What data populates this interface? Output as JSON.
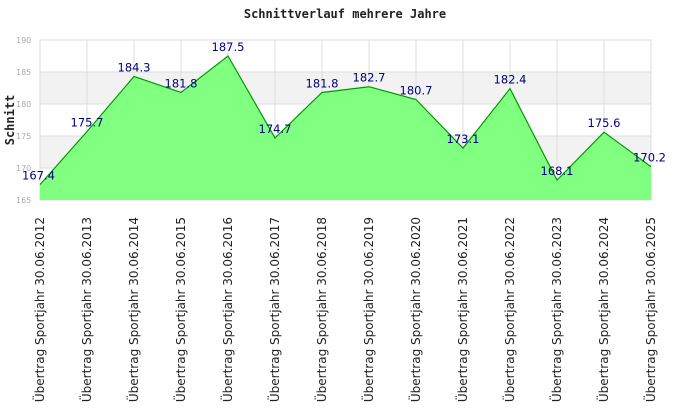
{
  "chart_data": {
    "type": "area",
    "title": "Schnittverlauf mehrere Jahre",
    "ylabel": "Schnitt",
    "xlabel": "",
    "ylim": [
      165,
      190
    ],
    "yticks": [
      165,
      170,
      175,
      180,
      185,
      190
    ],
    "grid": true,
    "legend": "none",
    "categories": [
      "Übertrag Sportjahr 30.06.2012",
      "Übertrag Sportjahr 30.06.2013",
      "Übertrag Sportjahr 30.06.2014",
      "Übertrag Sportjahr 30.06.2015",
      "Übertrag Sportjahr 30.06.2016",
      "Übertrag Sportjahr 30.06.2017",
      "Übertrag Sportjahr 30.06.2018",
      "Übertrag Sportjahr 30.06.2019",
      "Übertrag Sportjahr 30.06.2020",
      "Übertrag Sportjahr 30.06.2021",
      "Übertrag Sportjahr 30.06.2022",
      "Übertrag Sportjahr 30.06.2023",
      "Übertrag Sportjahr 30.06.2024",
      "Übertrag Sportjahr 30.06.2025"
    ],
    "values": [
      167.4,
      175.7,
      184.3,
      181.8,
      187.5,
      174.7,
      181.8,
      182.7,
      180.7,
      173.1,
      182.4,
      168.1,
      175.6,
      170.2
    ],
    "value_labels": [
      "167.4",
      "175.7",
      "184.3",
      "181.8",
      "187.5",
      "174.7",
      "181.8",
      "182.7",
      "180.7",
      "173.1",
      "182.4",
      "168.1",
      "175.6",
      "170.2"
    ],
    "colors": {
      "fill": "#80ff80",
      "line": "#009900",
      "label": "#000080",
      "band": "#f2f2f2",
      "grid": "#dddddd"
    }
  }
}
